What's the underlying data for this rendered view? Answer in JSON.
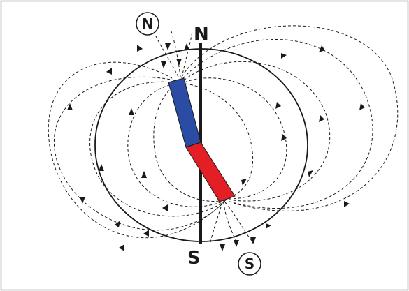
{
  "labels": {
    "geographic_north": "N",
    "geographic_south": "S",
    "magnetic_north": "N",
    "magnetic_south": "S"
  },
  "colors": {
    "magnet_north": "#2a4ca4",
    "magnet_south": "#e31e24",
    "lines": "#1a1a1a",
    "frame": "#999999"
  }
}
